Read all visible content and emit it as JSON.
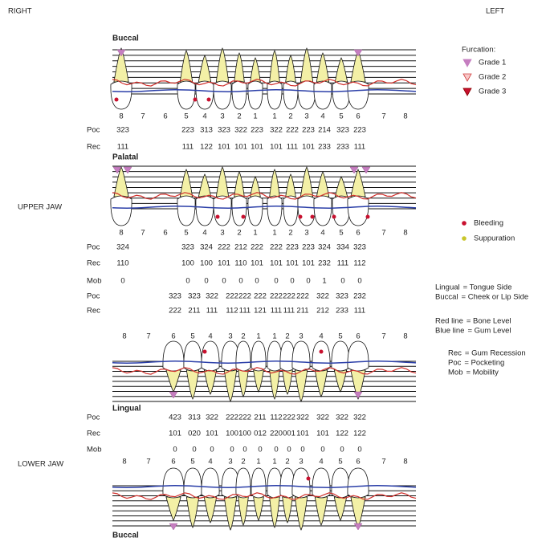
{
  "header": {
    "right": "RIGHT",
    "left": "LEFT"
  },
  "upper_jaw": {
    "label": "UPPER JAW",
    "buccal": {
      "title": "Buccal",
      "tooth_numbers": [
        "8",
        "7",
        "6",
        "5",
        "4",
        "3",
        "2",
        "1",
        "1",
        "2",
        "3",
        "4",
        "5",
        "6",
        "7",
        "8"
      ],
      "rows": [
        {
          "label": "Poc",
          "cells": [
            "323",
            null,
            null,
            "223",
            "313",
            "323",
            "322",
            "223",
            "322",
            "222",
            "223",
            "214",
            "323",
            "223",
            null,
            null
          ]
        },
        {
          "label": "Rec",
          "cells": [
            "111",
            null,
            null,
            "111",
            "122",
            "101",
            "101",
            "101",
            "101",
            "111",
            "101",
            "233",
            "233",
            "111",
            null,
            null
          ]
        }
      ]
    },
    "palatal": {
      "title": "Palatal",
      "tooth_numbers": [
        "8",
        "7",
        "6",
        "5",
        "4",
        "3",
        "2",
        "1",
        "1",
        "2",
        "3",
        "4",
        "5",
        "6",
        "7",
        "8"
      ],
      "rows": [
        {
          "label": "Poc",
          "cells": [
            "324",
            null,
            null,
            "323",
            "324",
            "222",
            "212",
            "222",
            "222",
            "223",
            "223",
            "324",
            "334",
            "323",
            null,
            null
          ]
        },
        {
          "label": "Rec",
          "cells": [
            "110",
            null,
            null,
            "100",
            "100",
            "101",
            "110",
            "101",
            "101",
            "101",
            "101",
            "232",
            "111",
            "112",
            null,
            null
          ]
        },
        {
          "label": "Mob",
          "cells": [
            "0",
            null,
            null,
            "0",
            "0",
            "0",
            "0",
            "0",
            "0",
            "0",
            "0",
            "1",
            "0",
            "0",
            null,
            null
          ]
        }
      ]
    }
  },
  "lower_jaw": {
    "label": "LOWER JAW",
    "lingual": {
      "title": "Lingual",
      "tooth_numbers": [
        "8",
        "7",
        "6",
        "5",
        "4",
        "3",
        "2",
        "1",
        "1",
        "2",
        "3",
        "4",
        "5",
        "6",
        "7",
        "8"
      ],
      "rows": [
        {
          "label": "Poc",
          "cells": [
            null,
            null,
            "323",
            "323",
            "322",
            "222",
            "222",
            "222",
            "222",
            "222",
            "222",
            "322",
            "323",
            "232",
            null,
            null
          ]
        },
        {
          "label": "Rec",
          "cells": [
            null,
            null,
            "222",
            "211",
            "111",
            "112",
            "111",
            "121",
            "111",
            "111",
            "211",
            "212",
            "233",
            "111",
            null,
            null
          ]
        }
      ]
    },
    "buccal": {
      "title": "Buccal",
      "tooth_numbers": [
        "8",
        "7",
        "6",
        "5",
        "4",
        "3",
        "2",
        "1",
        "1",
        "2",
        "3",
        "4",
        "5",
        "6",
        "7",
        "8"
      ],
      "rows": [
        {
          "label": "Poc",
          "cells": [
            null,
            null,
            "423",
            "313",
            "322",
            "222",
            "222",
            "211",
            "112",
            "222",
            "322",
            "322",
            "322",
            "322",
            null,
            null
          ]
        },
        {
          "label": "Rec",
          "cells": [
            null,
            null,
            "101",
            "020",
            "101",
            "100",
            "100",
            "012",
            "220",
            "001",
            "101",
            "101",
            "122",
            "122",
            null,
            null
          ]
        },
        {
          "label": "Mob",
          "cells": [
            null,
            null,
            "0",
            "0",
            "0",
            "0",
            "0",
            "0",
            "0",
            "0",
            "0",
            "0",
            "0",
            "0",
            null,
            null
          ]
        }
      ]
    }
  },
  "legend": {
    "furcation_title": "Furcation:",
    "grades": [
      "Grade 1",
      "Grade 2",
      "Grade 3"
    ],
    "markers": [
      "Bleeding",
      "Suppuration"
    ],
    "sides": [
      {
        "key": "Lingual",
        "desc": "= Tongue Side"
      },
      {
        "key": "Buccal",
        "desc": "= Cheek or Lip Side"
      }
    ],
    "lines": [
      {
        "key": "Red line",
        "desc": "= Bone Level"
      },
      {
        "key": "Blue line",
        "desc": "= Gum Level"
      }
    ],
    "abbreviations": [
      {
        "key": "Rec",
        "desc": "= Gum Recession"
      },
      {
        "key": "Poc",
        "desc": "= Pocketing"
      },
      {
        "key": "Mob",
        "desc": "= Mobility"
      }
    ]
  }
}
